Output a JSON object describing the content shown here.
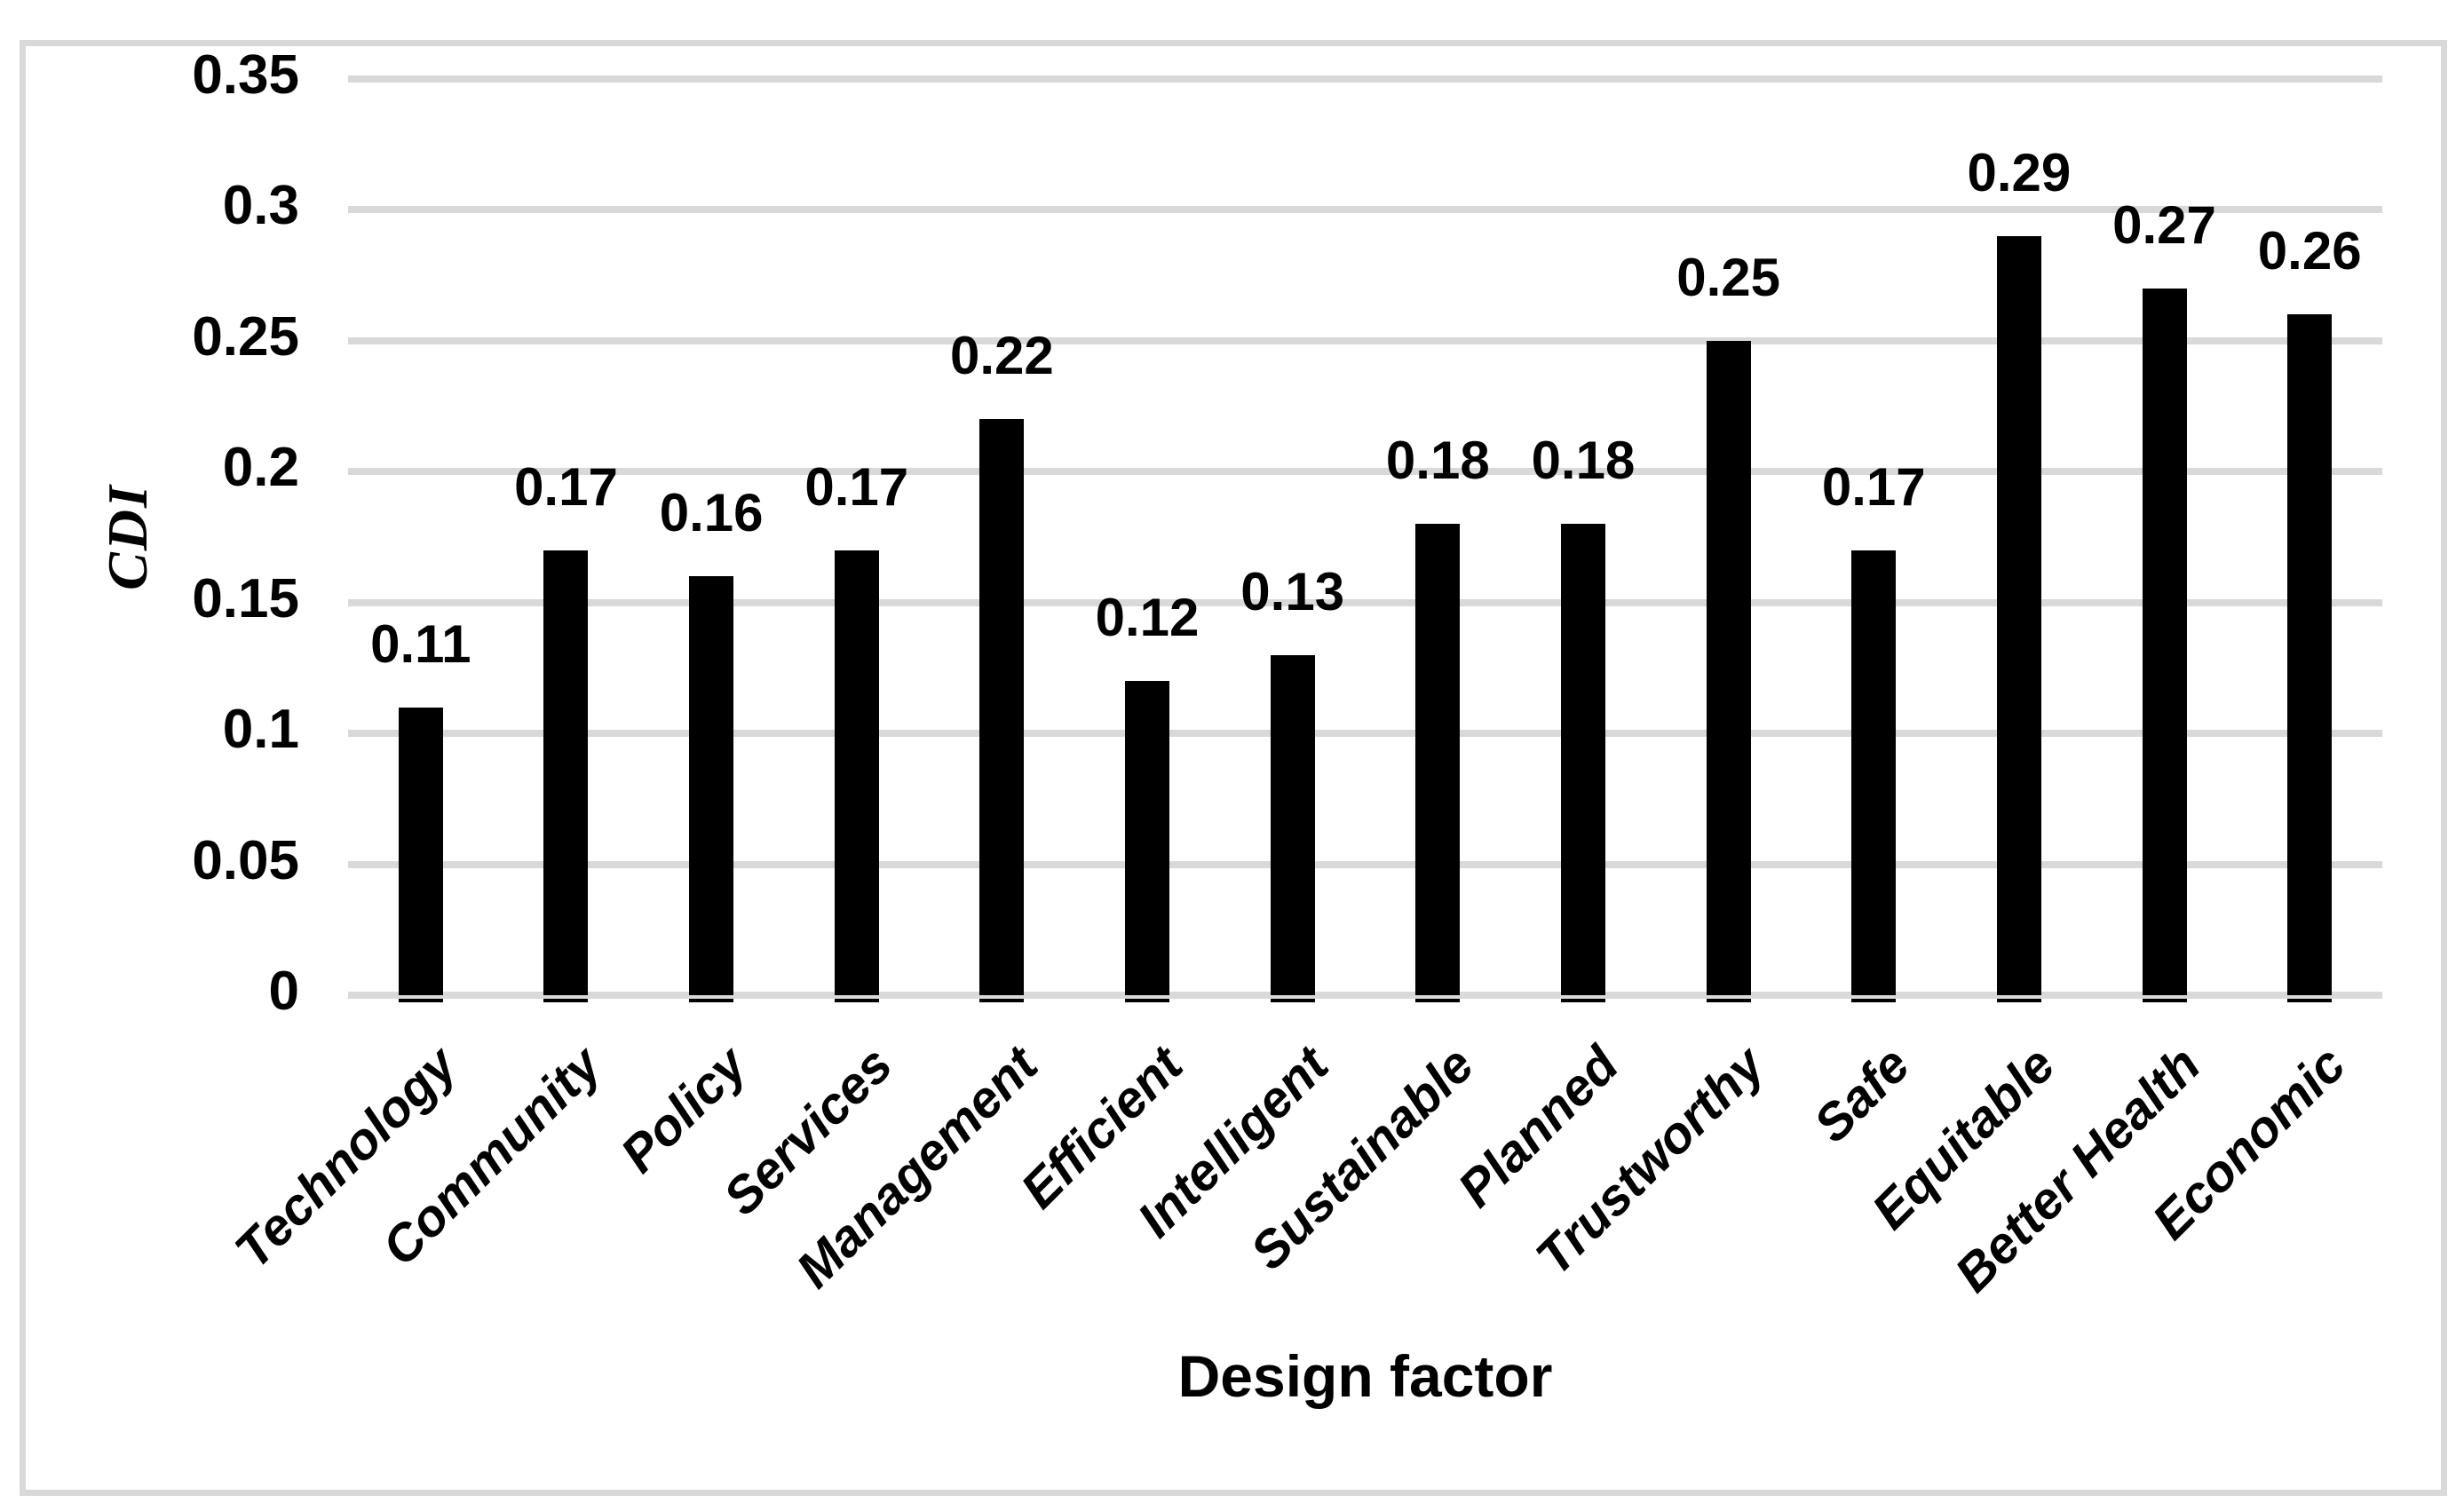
{
  "chart_data": {
    "type": "bar",
    "title": "",
    "xlabel": "Design factor",
    "ylabel": "CDI",
    "categories": [
      "Technology",
      "Community",
      "Policy",
      "Services",
      "Management",
      "Efficient",
      "Intelligent",
      "Sustainable",
      "Planned",
      "Trustworthy",
      "Safe",
      "Equitable",
      "Better Health",
      "Economic"
    ],
    "values": [
      0.11,
      0.17,
      0.16,
      0.17,
      0.22,
      0.12,
      0.13,
      0.18,
      0.18,
      0.25,
      0.17,
      0.29,
      0.27,
      0.26
    ],
    "ylim": [
      0,
      0.35
    ],
    "y_ticks": [
      "0",
      "0.05",
      "0.1",
      "0.15",
      "0.2",
      "0.25",
      "0.3",
      "0.35"
    ],
    "grid": "horizontal-only",
    "legend": "none",
    "data_labels_shown": true,
    "bar_color": "#000000",
    "gridline_color": "#d9d9d9",
    "frame_color": "#d9d9d9",
    "text_color": "#000000"
  }
}
